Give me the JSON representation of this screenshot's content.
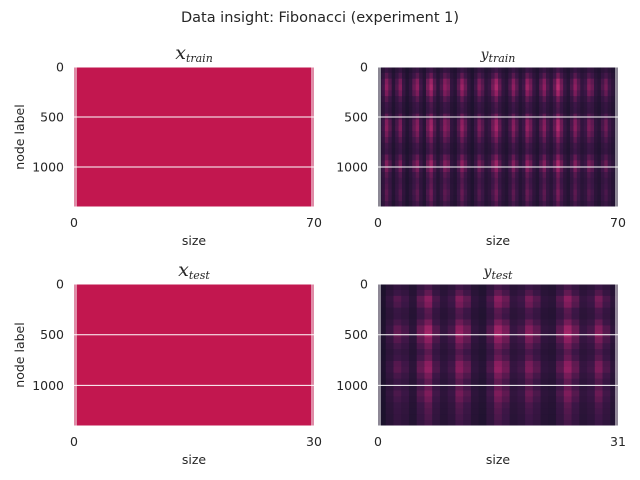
{
  "chart_data": {
    "title": "Data insight: Fibonacci (experiment 1)",
    "panels": [
      {
        "type": "heatmap",
        "title": "x",
        "title_sub": "train",
        "xlabel": "size",
        "ylabel": "node label",
        "xticks": [
          0,
          70
        ],
        "yticks": [
          0,
          500,
          1000
        ],
        "xlim": [
          0,
          70
        ],
        "ylim": [
          0,
          1400
        ],
        "grid": true,
        "fill": "uniform",
        "color": "#c2174f"
      },
      {
        "type": "heatmap",
        "title": "y",
        "title_sub": "train",
        "xlabel": "size",
        "ylabel": "",
        "xticks": [
          0,
          70
        ],
        "yticks": [
          0,
          500,
          1000
        ],
        "xlim": [
          0,
          70
        ],
        "ylim": [
          0,
          1400
        ],
        "grid": true,
        "fill": "textured",
        "column_profile": [
          0.05,
          0.4,
          0.7,
          0.5,
          0.2,
          0.45,
          0.65,
          0.35,
          0.15,
          0.3,
          0.55,
          0.7,
          0.4,
          0.2,
          0.6,
          0.8,
          0.5,
          0.25,
          0.45,
          0.7,
          0.6,
          0.3,
          0.2,
          0.5,
          0.75,
          0.55,
          0.3,
          0.15,
          0.4,
          0.65,
          0.5,
          0.25,
          0.35,
          0.6,
          0.8,
          0.55,
          0.3,
          0.2,
          0.45,
          0.7,
          0.5,
          0.25,
          0.4,
          0.75,
          0.6,
          0.35,
          0.2,
          0.5,
          0.7,
          0.45,
          0.3,
          0.55,
          0.85,
          0.6,
          0.35,
          0.2,
          0.45,
          0.7,
          0.5,
          0.3,
          0.4,
          0.65,
          0.55,
          0.3,
          0.2,
          0.45,
          0.6,
          0.4,
          0.25,
          0.1
        ],
        "row_profile": [
          0.15,
          0.45,
          0.8,
          0.9,
          0.75,
          0.45,
          0.25,
          0.2,
          0.5,
          0.8,
          0.85,
          0.7,
          0.5,
          0.3,
          0.25,
          0.55,
          0.8,
          0.7,
          0.45,
          0.35,
          0.4,
          0.5,
          0.45,
          0.3
        ]
      },
      {
        "type": "heatmap",
        "title": "x",
        "title_sub": "test",
        "xlabel": "size",
        "ylabel": "node label",
        "xticks": [
          0,
          30
        ],
        "yticks": [
          0,
          500,
          1000
        ],
        "xlim": [
          0,
          30
        ],
        "ylim": [
          0,
          1400
        ],
        "grid": true,
        "fill": "uniform",
        "color": "#c2174f"
      },
      {
        "type": "heatmap",
        "title": "y",
        "title_sub": "test",
        "xlabel": "size",
        "ylabel": "",
        "xticks": [
          0,
          31
        ],
        "yticks": [
          0,
          500,
          1000
        ],
        "xlim": [
          0,
          31
        ],
        "ylim": [
          0,
          1400
        ],
        "grid": true,
        "fill": "textured",
        "column_profile": [
          0.1,
          0.35,
          0.55,
          0.45,
          0.25,
          0.6,
          0.8,
          0.5,
          0.3,
          0.45,
          0.75,
          0.6,
          0.3,
          0.2,
          0.5,
          0.8,
          0.65,
          0.35,
          0.45,
          0.7,
          0.55,
          0.3,
          0.25,
          0.55,
          0.8,
          0.6,
          0.35,
          0.45,
          0.7,
          0.5,
          0.25
        ],
        "row_profile": [
          0.2,
          0.4,
          0.7,
          0.6,
          0.35,
          0.3,
          0.55,
          0.8,
          0.85,
          0.7,
          0.5,
          0.35,
          0.45,
          0.7,
          0.75,
          0.55,
          0.4,
          0.45,
          0.6,
          0.5,
          0.35,
          0.3,
          0.25,
          0.2
        ]
      }
    ]
  }
}
